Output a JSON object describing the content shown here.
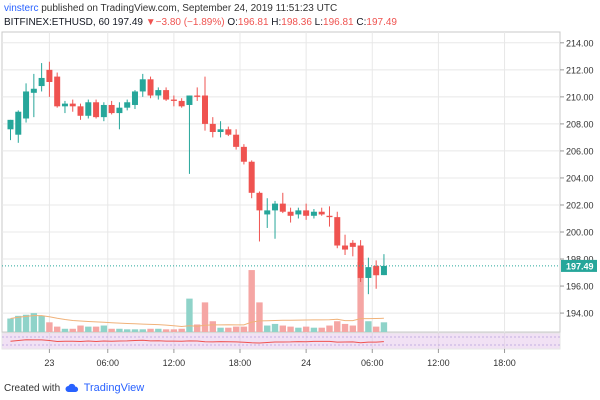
{
  "header": {
    "username": "vinsterc",
    "published_text": "published on TradingView.com, September 24, 2019 11:51:23 UTC",
    "symbol": "BITFINEX:ETHUSD, 60",
    "last": "197.49",
    "change_arrow": "▼",
    "change": "−3.80 (−1.89%)",
    "o_label": "O:",
    "o_value": "196.81",
    "h_label": "H:",
    "h_value": "198.36",
    "l_label": "L:",
    "l_value": "196.81",
    "c_label": "C:",
    "c_value": "197.49"
  },
  "footer": {
    "created_with": "Created with",
    "brand": "TradingView",
    "logo_icon": "tradingview-cloud-icon"
  },
  "colors": {
    "up": "#26a69a",
    "down": "#ef5350",
    "up_volume": "#8fd3c9",
    "down_volume": "#f5a6a4",
    "volume_ma": "#f0b27a",
    "oscillator_line": "#ef5350",
    "oscillator_band": "#e1bee7",
    "price_line": "#26a69a",
    "grid": "#e8e8e8"
  },
  "chart_data": {
    "type": "candlestick",
    "symbol": "BITFINEX:ETHUSD",
    "interval": "60",
    "y_axis_ticks": [
      "194.00",
      "196.00",
      "198.00",
      "200.00",
      "202.00",
      "204.00",
      "206.00",
      "208.00",
      "210.00",
      "212.00",
      "214.00"
    ],
    "ylim": [
      192.6,
      214.8
    ],
    "x_axis_ticks": [
      "23",
      "06:00",
      "12:00",
      "18:00",
      "24",
      "06:00",
      "12:00",
      "18:00"
    ],
    "last_price_label": "197.49",
    "last_price": 197.49,
    "grid": true,
    "candles": [
      {
        "o": 207.6,
        "h": 208.3,
        "l": 206.8,
        "c": 208.3,
        "v": 0.25
      },
      {
        "o": 207.2,
        "h": 209.0,
        "l": 206.6,
        "c": 208.9,
        "v": 0.3
      },
      {
        "o": 208.4,
        "h": 211.0,
        "l": 208.1,
        "c": 210.4,
        "v": 0.32
      },
      {
        "o": 210.3,
        "h": 211.7,
        "l": 208.5,
        "c": 210.6,
        "v": 0.35
      },
      {
        "o": 210.8,
        "h": 212.5,
        "l": 210.4,
        "c": 211.4,
        "v": 0.3
      },
      {
        "o": 212.0,
        "h": 212.6,
        "l": 210.0,
        "c": 211.1,
        "v": 0.18
      },
      {
        "o": 211.5,
        "h": 211.8,
        "l": 209.2,
        "c": 209.3,
        "v": 0.1
      },
      {
        "o": 209.3,
        "h": 209.7,
        "l": 208.8,
        "c": 209.5,
        "v": 0.06
      },
      {
        "o": 209.5,
        "h": 209.8,
        "l": 208.9,
        "c": 209.3,
        "v": 0.06
      },
      {
        "o": 209.3,
        "h": 209.5,
        "l": 208.3,
        "c": 208.6,
        "v": 0.12
      },
      {
        "o": 208.6,
        "h": 209.8,
        "l": 208.4,
        "c": 209.6,
        "v": 0.1
      },
      {
        "o": 209.6,
        "h": 209.8,
        "l": 208.4,
        "c": 208.5,
        "v": 0.1
      },
      {
        "o": 208.5,
        "h": 209.6,
        "l": 208.2,
        "c": 209.4,
        "v": 0.12
      },
      {
        "o": 209.4,
        "h": 209.7,
        "l": 208.7,
        "c": 208.8,
        "v": 0.06
      },
      {
        "o": 208.8,
        "h": 209.6,
        "l": 207.6,
        "c": 209.2,
        "v": 0.06
      },
      {
        "o": 209.2,
        "h": 209.8,
        "l": 209.0,
        "c": 209.6,
        "v": 0.05
      },
      {
        "o": 209.4,
        "h": 210.5,
        "l": 209.1,
        "c": 210.4,
        "v": 0.05
      },
      {
        "o": 210.4,
        "h": 211.7,
        "l": 210.0,
        "c": 211.3,
        "v": 0.05
      },
      {
        "o": 211.3,
        "h": 211.5,
        "l": 209.9,
        "c": 210.1,
        "v": 0.06
      },
      {
        "o": 210.1,
        "h": 210.7,
        "l": 209.8,
        "c": 210.5,
        "v": 0.06
      },
      {
        "o": 210.5,
        "h": 210.7,
        "l": 209.7,
        "c": 209.8,
        "v": 0.05
      },
      {
        "o": 209.8,
        "h": 210.1,
        "l": 209.3,
        "c": 209.7,
        "v": 0.05
      },
      {
        "o": 209.7,
        "h": 209.9,
        "l": 209.2,
        "c": 209.3,
        "v": 0.06
      },
      {
        "o": 209.4,
        "h": 210.1,
        "l": 204.3,
        "c": 210.1,
        "v": 0.62
      },
      {
        "o": 210.1,
        "h": 210.7,
        "l": 209.7,
        "c": 210.0,
        "v": 0.14
      },
      {
        "o": 210.1,
        "h": 211.5,
        "l": 207.5,
        "c": 208.0,
        "v": 0.55
      },
      {
        "o": 208.0,
        "h": 208.5,
        "l": 207.0,
        "c": 207.4,
        "v": 0.2
      },
      {
        "o": 207.4,
        "h": 208.2,
        "l": 207.0,
        "c": 207.6,
        "v": 0.08
      },
      {
        "o": 207.6,
        "h": 207.8,
        "l": 207.1,
        "c": 207.2,
        "v": 0.08
      },
      {
        "o": 207.2,
        "h": 207.6,
        "l": 206.1,
        "c": 206.3,
        "v": 0.1
      },
      {
        "o": 206.3,
        "h": 206.5,
        "l": 205.0,
        "c": 205.2,
        "v": 0.1
      },
      {
        "o": 205.2,
        "h": 205.3,
        "l": 202.5,
        "c": 202.9,
        "v": 1.15
      },
      {
        "o": 202.9,
        "h": 203.0,
        "l": 199.3,
        "c": 201.6,
        "v": 0.55
      },
      {
        "o": 201.3,
        "h": 202.5,
        "l": 200.3,
        "c": 201.6,
        "v": 0.12
      },
      {
        "o": 201.6,
        "h": 202.3,
        "l": 199.5,
        "c": 202.1,
        "v": 0.15
      },
      {
        "o": 202.1,
        "h": 202.9,
        "l": 201.4,
        "c": 201.5,
        "v": 0.12
      },
      {
        "o": 201.5,
        "h": 201.8,
        "l": 200.7,
        "c": 201.2,
        "v": 0.1
      },
      {
        "o": 201.3,
        "h": 201.8,
        "l": 201.0,
        "c": 201.6,
        "v": 0.08
      },
      {
        "o": 201.6,
        "h": 202.1,
        "l": 200.9,
        "c": 201.2,
        "v": 0.1
      },
      {
        "o": 201.2,
        "h": 201.7,
        "l": 201.0,
        "c": 201.5,
        "v": 0.08
      },
      {
        "o": 201.5,
        "h": 201.8,
        "l": 201.2,
        "c": 201.3,
        "v": 0.08
      },
      {
        "o": 201.2,
        "h": 201.9,
        "l": 200.4,
        "c": 201.1,
        "v": 0.12
      },
      {
        "o": 201.1,
        "h": 201.5,
        "l": 198.8,
        "c": 199.0,
        "v": 0.2
      },
      {
        "o": 199.0,
        "h": 199.8,
        "l": 198.3,
        "c": 198.7,
        "v": 0.15
      },
      {
        "o": 199.2,
        "h": 199.4,
        "l": 198.2,
        "c": 198.9,
        "v": 0.12
      },
      {
        "o": 199.0,
        "h": 199.4,
        "l": 196.3,
        "c": 196.6,
        "v": 1.3
      },
      {
        "o": 196.6,
        "h": 198.1,
        "l": 195.4,
        "c": 197.4,
        "v": 0.2
      },
      {
        "o": 197.5,
        "h": 197.9,
        "l": 195.8,
        "c": 196.8,
        "v": 0.1
      },
      {
        "o": 196.81,
        "h": 198.36,
        "l": 196.81,
        "c": 197.49,
        "v": 0.18
      }
    ]
  }
}
